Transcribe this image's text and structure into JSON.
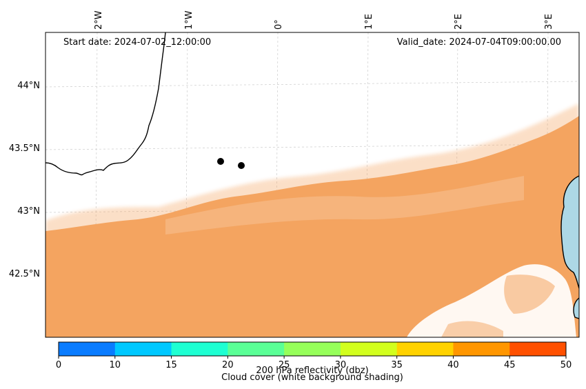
{
  "map": {
    "start_label": "Start date: 2024-07-02_12:00:00",
    "valid_label": "Valid_date: 2024-07-04T09:00:00.00",
    "lon_labels": [
      "2°W",
      "1°W",
      "0°",
      "1°E",
      "2°E",
      "3°E"
    ],
    "lat_labels": [
      "44°N",
      "43.5°N",
      "43°N",
      "42.5°N"
    ],
    "grid": true,
    "colors": {
      "cloud": "#f4a460",
      "sea": "#add8e6",
      "coastline": "#000000",
      "gridline": "#cccccc"
    },
    "markers": [
      {
        "name": "point-1"
      },
      {
        "name": "point-2"
      }
    ]
  },
  "colorbar": {
    "ticks": [
      "0",
      "10",
      "15",
      "20",
      "25",
      "30",
      "35",
      "40",
      "45",
      "50"
    ],
    "colors": [
      "#0a7cff",
      "#00c8ff",
      "#1effd2",
      "#5aff96",
      "#96ff5a",
      "#d2ff1e",
      "#ffd200",
      "#ff9600",
      "#ff5000"
    ],
    "label": "200 hPa reflectivity (dbz)",
    "sublabel": "Cloud cover (white background shading)"
  }
}
